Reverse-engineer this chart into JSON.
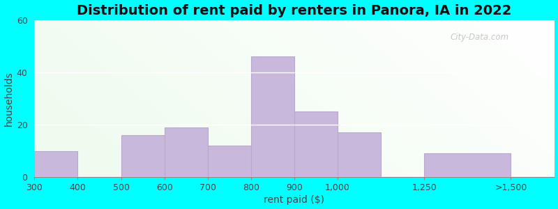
{
  "title": "Distribution of rent paid by renters in Panora, IA in 2022",
  "xlabel": "rent paid ($)",
  "ylabel": "households",
  "tick_labels": [
    "300",
    "400",
    "500",
    "600",
    "700",
    "800",
    "900",
    "1,000",
    "1,250",
    ">1,500"
  ],
  "tick_positions": [
    0,
    1,
    2,
    3,
    4,
    5,
    6,
    7,
    9,
    11
  ],
  "bar_lefts": [
    0,
    2,
    3,
    4,
    5,
    6,
    7,
    9
  ],
  "bar_widths": [
    1,
    1,
    1,
    1,
    1,
    1,
    1,
    2
  ],
  "values": [
    10,
    16,
    19,
    12,
    46,
    25,
    17,
    9
  ],
  "bar_color": "#c8b9dc",
  "bar_edgecolor": "#b8a8cc",
  "ylim": [
    0,
    60
  ],
  "xlim": [
    0,
    12
  ],
  "yticks": [
    0,
    20,
    40,
    60
  ],
  "background_outer": "#00FFFF",
  "title_fontsize": 14,
  "axis_label_fontsize": 10,
  "tick_fontsize": 9,
  "watermark": "City-Data.com"
}
